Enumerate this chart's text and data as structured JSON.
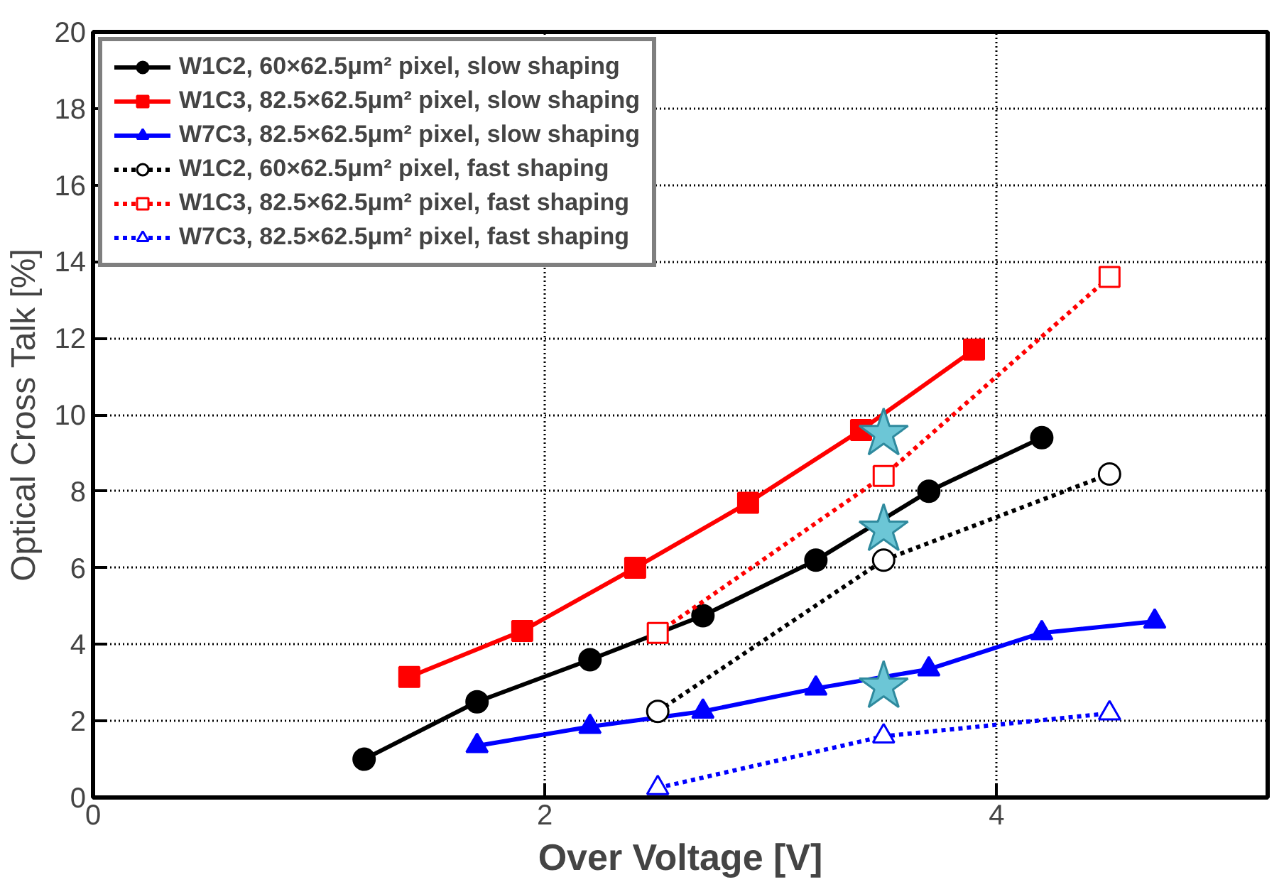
{
  "chart_data": {
    "type": "line",
    "xlabel": "Over Voltage [V]",
    "ylabel": "Optical Cross Talk [%]",
    "xlim": [
      0,
      5.2
    ],
    "ylim": [
      0,
      20
    ],
    "xticks": [
      0,
      2,
      4
    ],
    "yticks": [
      0,
      2,
      4,
      6,
      8,
      10,
      12,
      14,
      16,
      18,
      20
    ],
    "grid": true,
    "legend": "top left",
    "series": [
      {
        "name": "W1C2, 60×62.5μm² pixel, slow shaping",
        "color": "#000000",
        "marker": "circle",
        "line_style": "solid",
        "x": [
          1.2,
          1.7,
          2.2,
          2.7,
          3.2,
          3.7,
          4.2
        ],
        "values": [
          1.0,
          2.5,
          3.6,
          4.75,
          6.2,
          8.0,
          9.4
        ]
      },
      {
        "name": "W1C3, 82.5×62.5μm² pixel, slow shaping",
        "color": "#ff0000",
        "marker": "square",
        "line_style": "solid",
        "x": [
          1.4,
          1.9,
          2.4,
          2.9,
          3.4,
          3.9
        ],
        "values": [
          3.15,
          4.35,
          6.0,
          7.7,
          9.6,
          11.7
        ]
      },
      {
        "name": "W7C3, 82.5×62.5μm² pixel, slow shaping",
        "color": "#0000ff",
        "marker": "triangle",
        "line_style": "solid",
        "x": [
          1.7,
          2.2,
          2.7,
          3.2,
          3.7,
          4.2,
          4.7
        ],
        "values": [
          1.35,
          1.85,
          2.25,
          2.85,
          3.35,
          4.3,
          4.6
        ]
      },
      {
        "name": "W1C2, 60×62.5μm² pixel, fast shaping",
        "color": "#000000",
        "marker": "circle",
        "line_style": "dotted",
        "x": [
          2.5,
          3.5,
          4.5
        ],
        "values": [
          2.25,
          6.2,
          8.45
        ]
      },
      {
        "name": "W1C3, 82.5×62.5μm² pixel, fast shaping",
        "color": "#ff0000",
        "marker": "square",
        "line_style": "dotted",
        "x": [
          2.5,
          3.5,
          4.5
        ],
        "values": [
          4.3,
          8.4,
          13.6
        ]
      },
      {
        "name": "W7C3, 82.5×62.5μm² pixel, fast shaping",
        "color": "#0000ff",
        "marker": "triangle",
        "line_style": "dotted",
        "x": [
          2.5,
          3.5,
          4.5
        ],
        "values": [
          0.25,
          1.6,
          2.2
        ]
      },
      {
        "type": "scatter",
        "color": "#6cc6d6",
        "marker": "star",
        "x": [
          3.5,
          3.5,
          3.5
        ],
        "values": [
          9.5,
          7.0,
          2.9
        ]
      }
    ]
  }
}
